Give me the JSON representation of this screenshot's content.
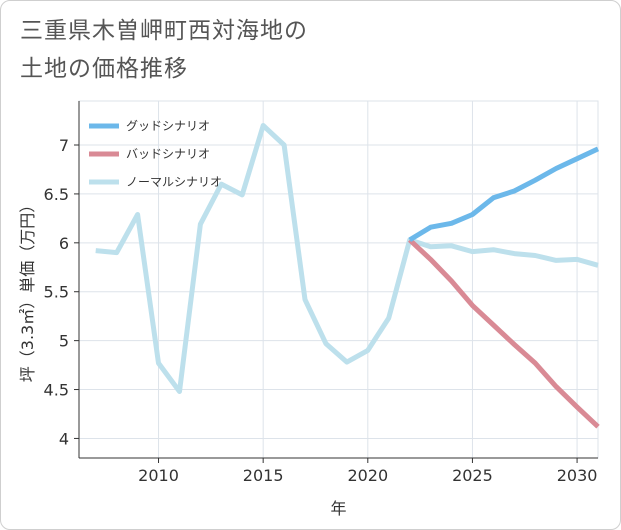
{
  "title": {
    "line1": "三重県木曽岬町西対海地の",
    "line2": "土地の価格推移"
  },
  "colors": {
    "good": "#6cb8ea",
    "bad": "#d98a95",
    "normal": "#bde0ec",
    "grid": "#dde3ea",
    "axis": "#333333"
  },
  "chart_data": {
    "type": "line",
    "xlabel": "年",
    "ylabel": "坪（3.3㎡）単価（万円）",
    "xlim": [
      2006.2,
      2031
    ],
    "ylim": [
      3.8,
      7.45
    ],
    "xticks": [
      2010,
      2015,
      2020,
      2025,
      2030
    ],
    "yticks": [
      4,
      4.5,
      5,
      5.5,
      6,
      6.5,
      7
    ],
    "legend_position": "top-left",
    "series": [
      {
        "name": "グッドシナリオ",
        "key": "good",
        "x": [
          2022,
          2023,
          2024,
          2025,
          2026,
          2027,
          2028,
          2029,
          2030,
          2031
        ],
        "y": [
          6.03,
          6.16,
          6.2,
          6.29,
          6.46,
          6.53,
          6.64,
          6.76,
          6.86,
          6.96
        ]
      },
      {
        "name": "バッドシナリオ",
        "key": "bad",
        "x": [
          2022,
          2023,
          2024,
          2025,
          2026,
          2027,
          2028,
          2029,
          2030,
          2031
        ],
        "y": [
          6.03,
          5.83,
          5.61,
          5.36,
          5.16,
          4.96,
          4.77,
          4.53,
          4.32,
          4.12
        ]
      },
      {
        "name": "ノーマルシナリオ",
        "key": "normal",
        "x": [
          2007,
          2008,
          2009,
          2010,
          2011,
          2012,
          2013,
          2014,
          2015,
          2016,
          2017,
          2018,
          2019,
          2020,
          2021,
          2022,
          2023,
          2024,
          2025,
          2026,
          2027,
          2028,
          2029,
          2030,
          2031
        ],
        "y": [
          5.92,
          5.9,
          6.29,
          4.77,
          4.48,
          6.19,
          6.6,
          6.49,
          7.2,
          7.0,
          5.42,
          4.97,
          4.78,
          4.9,
          5.23,
          6.03,
          5.96,
          5.97,
          5.91,
          5.93,
          5.89,
          5.87,
          5.82,
          5.83,
          5.77
        ]
      }
    ]
  }
}
